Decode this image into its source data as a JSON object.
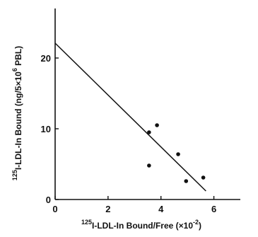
{
  "chart_data": {
    "type": "scatter",
    "xlabel": {
      "prefix": "125",
      "main": "I-LDL-In Bound/Free (×10",
      "exp": "-2",
      "suffix": ")"
    },
    "ylabel": {
      "prefix": "125",
      "main": "I-LDL-In Bound (ng/5×10",
      "exp": "6",
      "suffix": " PBL)"
    },
    "xlim": [
      0,
      7
    ],
    "ylim": [
      0,
      27
    ],
    "x_ticks": [
      0,
      2,
      4,
      6
    ],
    "y_ticks": [
      0,
      10,
      20
    ],
    "x_tick_labels": [
      "0",
      "2",
      "4",
      "6"
    ],
    "y_tick_labels": [
      "0",
      "10",
      "20"
    ],
    "points": [
      {
        "x": 3.55,
        "y": 9.5
      },
      {
        "x": 3.55,
        "y": 4.8
      },
      {
        "x": 3.85,
        "y": 10.5
      },
      {
        "x": 4.65,
        "y": 6.4
      },
      {
        "x": 4.95,
        "y": 2.6
      },
      {
        "x": 5.6,
        "y": 3.1
      }
    ],
    "fit_line": {
      "x": [
        0,
        5.7
      ],
      "y": [
        22.1,
        1.2
      ]
    },
    "grid": false,
    "colors": {
      "ink": "#111111",
      "background": "#ffffff"
    }
  }
}
